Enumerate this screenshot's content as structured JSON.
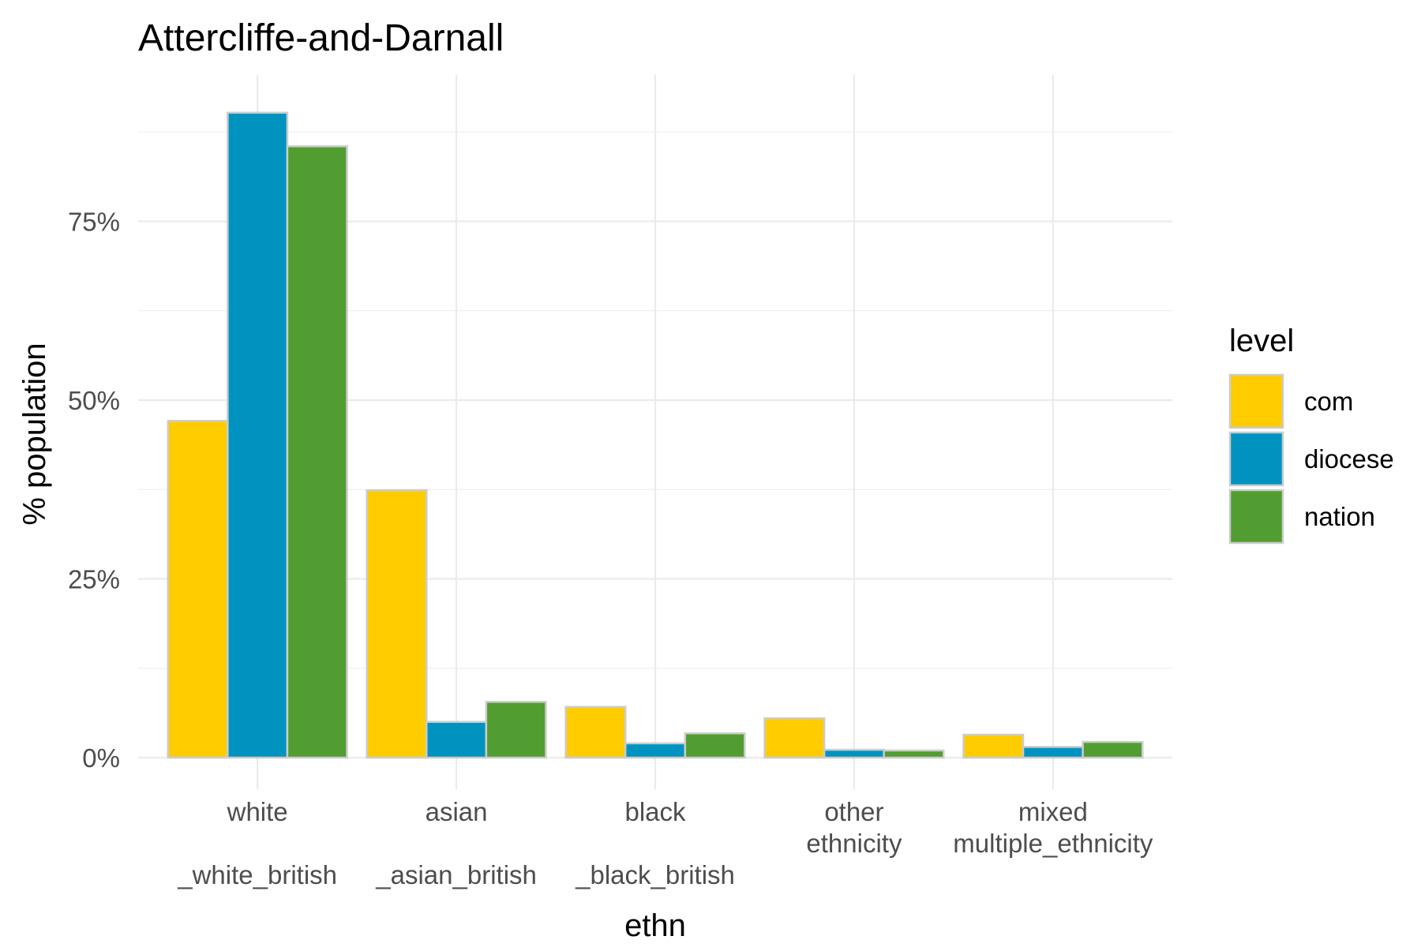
{
  "chart_data": {
    "type": "bar",
    "title": "Attercliffe-and-Darnall",
    "xlabel": "ethn",
    "ylabel": "% population",
    "ylim": [
      0,
      0.9
    ],
    "y_ticks": [
      0,
      0.25,
      0.5,
      0.75
    ],
    "y_tick_labels": [
      "0%",
      "25%",
      "50%",
      "75%"
    ],
    "y_minor_ticks": [
      0.125,
      0.375,
      0.625,
      0.875
    ],
    "grid": true,
    "legend_position": "right",
    "legend_title": "level",
    "categories": [
      "white\n_white_british",
      "asian\n_asian_british",
      "black\n_black_british",
      "other\nethnicity",
      "mixed\nmultiple_ethnicity"
    ],
    "series": [
      {
        "name": "com",
        "color": "#FFCC00",
        "values": [
          0.471,
          0.374,
          0.071,
          0.055,
          0.032
        ]
      },
      {
        "name": "diocese",
        "color": "#0093C0",
        "values": [
          0.902,
          0.05,
          0.02,
          0.011,
          0.015
        ]
      },
      {
        "name": "nation",
        "color": "#529D31",
        "values": [
          0.855,
          0.078,
          0.034,
          0.01,
          0.022
        ]
      }
    ]
  }
}
